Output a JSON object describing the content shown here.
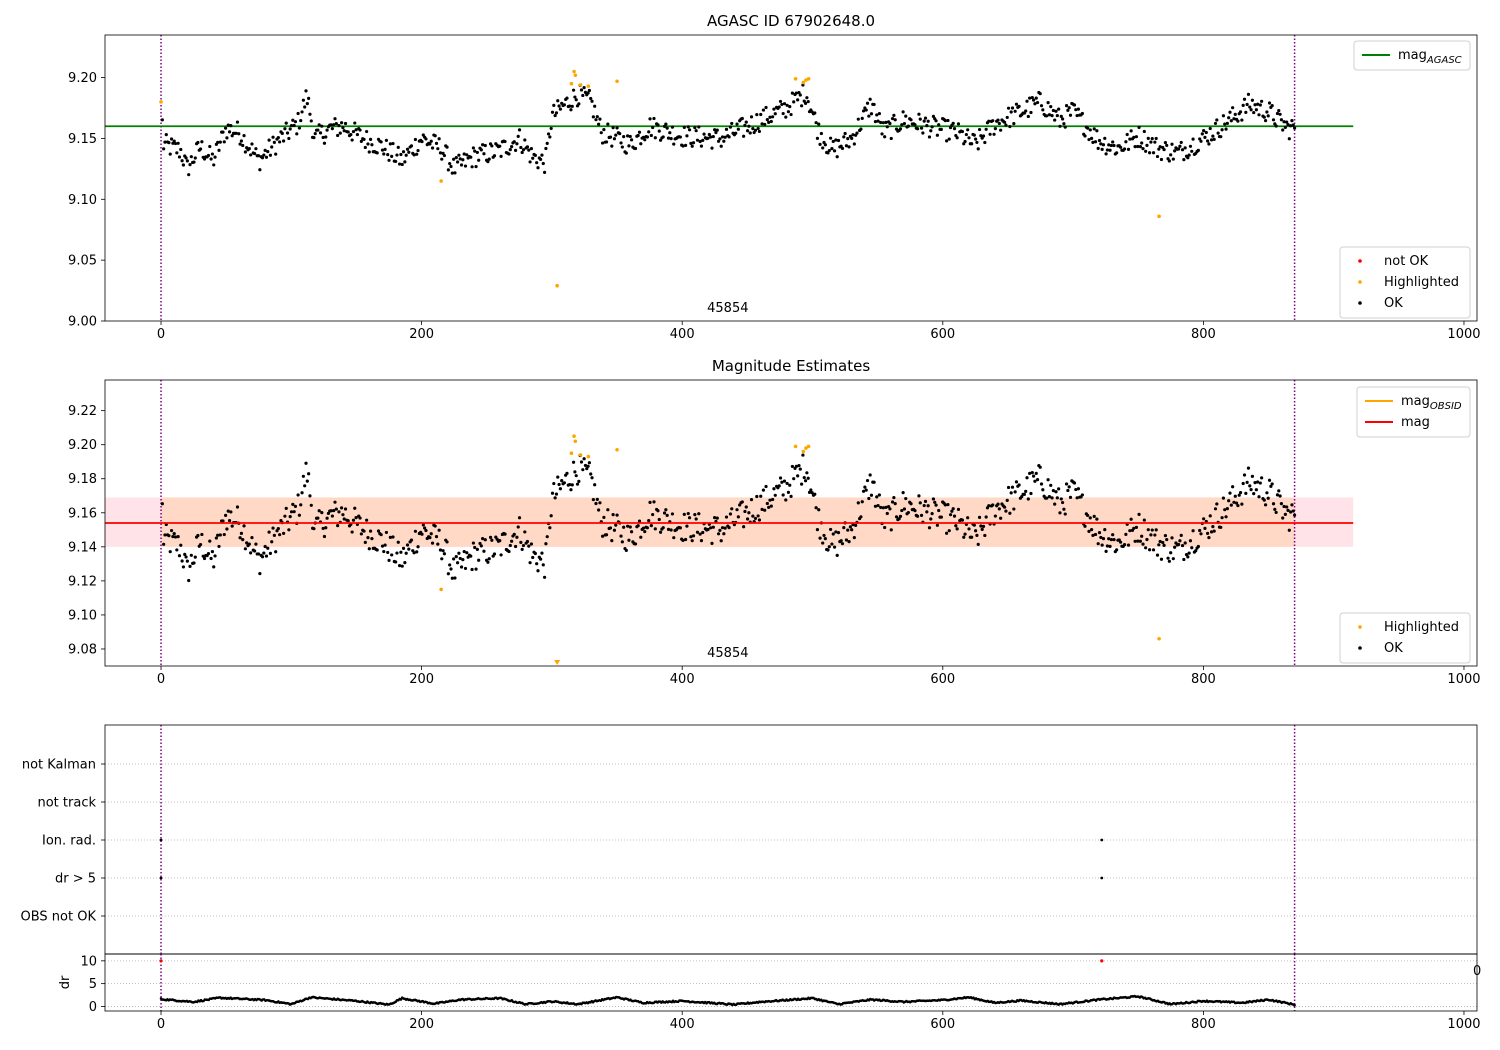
{
  "chart_data": [
    {
      "type": "scatter",
      "title": "AGASC ID 67902648.0",
      "xlim": [
        -43,
        1010
      ],
      "ylim": [
        9.0,
        9.235
      ],
      "xticks": [
        0,
        200,
        400,
        600,
        800,
        1000
      ],
      "yticks": [
        9.0,
        9.05,
        9.1,
        9.15,
        9.2
      ],
      "ytick_decimals": 2,
      "reference_lines": [
        {
          "name": "mag_AGASC",
          "y": 9.16,
          "x_range": [
            -43,
            915
          ],
          "color": "#008000"
        }
      ],
      "vlines": [
        0,
        870
      ],
      "vline_color": "#800080",
      "obsid_label": {
        "text": "45854",
        "x": 435
      },
      "legend_top": {
        "placement": "upper-right",
        "entries": [
          {
            "base": "mag",
            "sub": "AGASC",
            "color": "#008000",
            "kind": "line"
          }
        ]
      },
      "legend_bottom": {
        "placement": "lower-right",
        "entries": [
          {
            "label": "not OK",
            "color": "#ff0000",
            "kind": "dot"
          },
          {
            "label": "Highlighted",
            "color": "#ffa500",
            "kind": "dot"
          },
          {
            "label": "OK",
            "color": "#000000",
            "kind": "dot"
          }
        ]
      },
      "series": [
        {
          "name": "Highlighted",
          "color": "#ffa500",
          "points": [
            [
              0,
              9.18
            ],
            [
              215,
              9.115
            ],
            [
              304,
              9.029
            ],
            [
              315,
              9.195
            ],
            [
              317,
              9.205
            ],
            [
              318,
              9.202
            ],
            [
              322,
              9.194
            ],
            [
              328,
              9.193
            ],
            [
              350,
              9.197
            ],
            [
              487,
              9.199
            ],
            [
              493,
              9.196
            ],
            [
              495,
              9.198
            ],
            [
              497,
              9.199
            ],
            [
              766,
              9.086
            ]
          ]
        }
      ],
      "ok_profile": {
        "knots": [
          [
            0,
            9.18
          ],
          [
            2,
            9.145
          ],
          [
            15,
            9.14
          ],
          [
            20,
            9.125
          ],
          [
            30,
            9.143
          ],
          [
            40,
            9.132
          ],
          [
            50,
            9.158
          ],
          [
            60,
            9.155
          ],
          [
            75,
            9.132
          ],
          [
            90,
            9.148
          ],
          [
            105,
            9.162
          ],
          [
            112,
            9.185
          ],
          [
            118,
            9.15
          ],
          [
            130,
            9.158
          ],
          [
            140,
            9.16
          ],
          [
            155,
            9.15
          ],
          [
            170,
            9.143
          ],
          [
            185,
            9.132
          ],
          [
            200,
            9.15
          ],
          [
            215,
            9.142
          ],
          [
            225,
            9.125
          ],
          [
            240,
            9.135
          ],
          [
            260,
            9.14
          ],
          [
            275,
            9.15
          ],
          [
            285,
            9.135
          ],
          [
            295,
            9.13
          ],
          [
            300,
            9.168
          ],
          [
            310,
            9.178
          ],
          [
            320,
            9.186
          ],
          [
            330,
            9.18
          ],
          [
            338,
            9.155
          ],
          [
            350,
            9.15
          ],
          [
            360,
            9.145
          ],
          [
            375,
            9.16
          ],
          [
            400,
            9.152
          ],
          [
            430,
            9.15
          ],
          [
            460,
            9.165
          ],
          [
            480,
            9.175
          ],
          [
            495,
            9.188
          ],
          [
            505,
            9.155
          ],
          [
            515,
            9.14
          ],
          [
            530,
            9.15
          ],
          [
            545,
            9.178
          ],
          [
            555,
            9.155
          ],
          [
            570,
            9.165
          ],
          [
            590,
            9.16
          ],
          [
            610,
            9.155
          ],
          [
            625,
            9.145
          ],
          [
            640,
            9.162
          ],
          [
            660,
            9.172
          ],
          [
            675,
            9.18
          ],
          [
            690,
            9.165
          ],
          [
            700,
            9.172
          ],
          [
            720,
            9.148
          ],
          [
            735,
            9.142
          ],
          [
            750,
            9.152
          ],
          [
            765,
            9.142
          ],
          [
            780,
            9.138
          ],
          [
            800,
            9.15
          ],
          [
            820,
            9.165
          ],
          [
            835,
            9.178
          ],
          [
            850,
            9.172
          ],
          [
            865,
            9.158
          ],
          [
            870,
            9.16
          ],
          [
            875,
            9.142
          ]
        ],
        "amplitude": 0.009,
        "n_points": 860
      }
    },
    {
      "type": "scatter",
      "title": "Magnitude Estimates",
      "xlim": [
        -43,
        1010
      ],
      "ylim": [
        9.07,
        9.238
      ],
      "xticks": [
        0,
        200,
        400,
        600,
        800,
        1000
      ],
      "yticks": [
        9.08,
        9.1,
        9.12,
        9.14,
        9.16,
        9.18,
        9.2,
        9.22
      ],
      "ytick_decimals": 2,
      "reference_lines": [
        {
          "name": "mag",
          "y": 9.154,
          "x_range": [
            -43,
            915
          ],
          "color": "#ff0000"
        }
      ],
      "band": {
        "y_low": 9.14,
        "y_high": 9.169,
        "inner_x_range": [
          0,
          870
        ],
        "outer_x_range": [
          -43,
          915
        ],
        "inner_color": "#ffd9c6",
        "outer_color": "#ffe3e8"
      },
      "vlines": [
        0,
        870
      ],
      "vline_color": "#800080",
      "obsid_label": {
        "text": "45854",
        "x": 435
      },
      "legend_top": {
        "placement": "upper-right",
        "entries": [
          {
            "base": "mag",
            "sub": "OBSID",
            "color": "#ffa500",
            "kind": "line"
          },
          {
            "base": "mag",
            "sub": "",
            "color": "#ff0000",
            "kind": "line"
          }
        ]
      },
      "legend_bottom": {
        "placement": "lower-right",
        "entries": [
          {
            "label": "Highlighted",
            "color": "#ffa500",
            "kind": "dot"
          },
          {
            "label": "OK",
            "color": "#000000",
            "kind": "dot"
          }
        ]
      },
      "clipped_marker": {
        "x": 304,
        "color": "#ffa500"
      },
      "series": [
        {
          "name": "Highlighted",
          "color": "#ffa500",
          "points": [
            [
              215,
              9.115
            ],
            [
              315,
              9.195
            ],
            [
              317,
              9.205
            ],
            [
              318,
              9.202
            ],
            [
              322,
              9.194
            ],
            [
              328,
              9.193
            ],
            [
              350,
              9.197
            ],
            [
              487,
              9.199
            ],
            [
              493,
              9.196
            ],
            [
              495,
              9.198
            ],
            [
              497,
              9.199
            ],
            [
              766,
              9.086
            ]
          ]
        }
      ],
      "ok_profile": {
        "same_as_panel": 0
      }
    },
    {
      "type": "scatter",
      "title": "",
      "xlim": [
        -43,
        1010
      ],
      "categories": [
        "not Kalman",
        "not track",
        "Ion. rad.",
        "dr > 5",
        "OBS not OK"
      ],
      "vlines": [
        0,
        870
      ],
      "vline_color": "#800080",
      "flags": [
        {
          "category": "Ion. rad.",
          "x": [
            0,
            722
          ]
        },
        {
          "category": "dr > 5",
          "x": [
            0,
            722
          ]
        }
      ]
    },
    {
      "type": "scatter",
      "title": "",
      "xlim": [
        -43,
        1010
      ],
      "ylim": [
        -1,
        11.5
      ],
      "xticks": [
        0,
        200,
        400,
        600,
        800,
        1000
      ],
      "yticks": [
        0,
        5,
        10
      ],
      "ylabel": "dr",
      "clipped_tick_text": "0",
      "vlines": [
        0,
        870
      ],
      "vline_color": "#800080",
      "series": [
        {
          "name": "dr > 5",
          "color": "#ff0000",
          "points": [
            [
              0,
              10
            ],
            [
              722,
              10
            ]
          ]
        }
      ],
      "dr_profile": {
        "knots": [
          [
            0,
            1.6
          ],
          [
            25,
            1.0
          ],
          [
            45,
            1.9
          ],
          [
            80,
            1.4
          ],
          [
            100,
            0.5
          ],
          [
            115,
            2.0
          ],
          [
            150,
            1.2
          ],
          [
            175,
            0.4
          ],
          [
            185,
            1.8
          ],
          [
            210,
            0.6
          ],
          [
            230,
            1.5
          ],
          [
            260,
            1.8
          ],
          [
            280,
            0.5
          ],
          [
            300,
            1.1
          ],
          [
            320,
            0.5
          ],
          [
            350,
            2.0
          ],
          [
            370,
            0.8
          ],
          [
            400,
            1.2
          ],
          [
            440,
            0.4
          ],
          [
            460,
            1.0
          ],
          [
            500,
            1.8
          ],
          [
            520,
            0.5
          ],
          [
            545,
            1.5
          ],
          [
            570,
            1.0
          ],
          [
            600,
            1.4
          ],
          [
            620,
            2.0
          ],
          [
            640,
            0.8
          ],
          [
            660,
            1.3
          ],
          [
            690,
            0.5
          ],
          [
            720,
            1.5
          ],
          [
            750,
            2.2
          ],
          [
            775,
            0.5
          ],
          [
            800,
            1.2
          ],
          [
            830,
            0.8
          ],
          [
            850,
            1.5
          ],
          [
            870,
            0.4
          ]
        ],
        "n_points": 880
      }
    }
  ]
}
